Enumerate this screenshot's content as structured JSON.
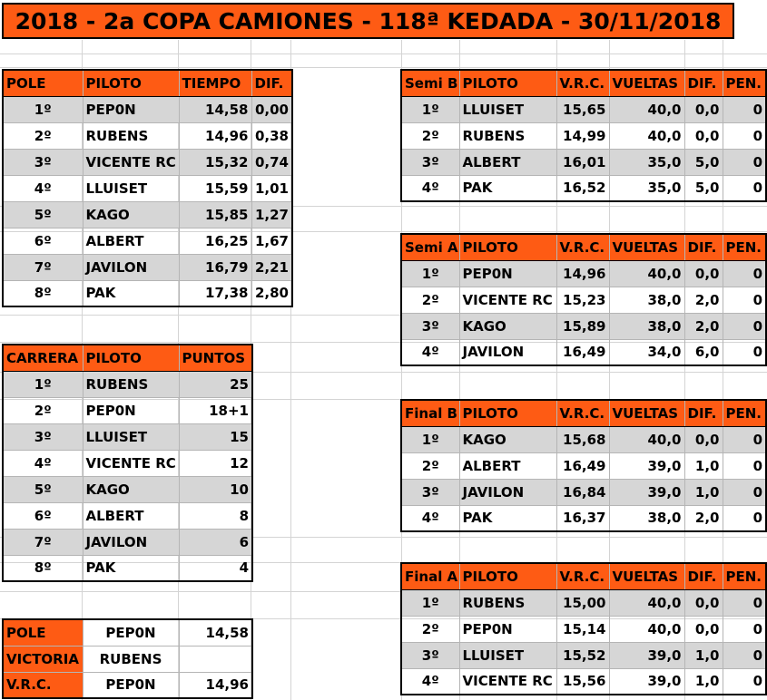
{
  "title": "2018 - 2a COPA CAMIONES - 118ª KEDADA - 30/11/2018",
  "pole": {
    "headers": [
      "POLE",
      "PILOTO",
      "TIEMPO",
      "DIF."
    ],
    "rows": [
      [
        "1º",
        "PEP0N",
        "14,58",
        "0,00"
      ],
      [
        "2º",
        "RUBENS",
        "14,96",
        "0,38"
      ],
      [
        "3º",
        "VICENTE RC",
        "15,32",
        "0,74"
      ],
      [
        "4º",
        "LLUISET",
        "15,59",
        "1,01"
      ],
      [
        "5º",
        "KAGO",
        "15,85",
        "1,27"
      ],
      [
        "6º",
        "ALBERT",
        "16,25",
        "1,67"
      ],
      [
        "7º",
        "JAVILON",
        "16,79",
        "2,21"
      ],
      [
        "8º",
        "PAK",
        "17,38",
        "2,80"
      ]
    ]
  },
  "carrera": {
    "headers": [
      "CARRERA",
      "PILOTO",
      "PUNTOS"
    ],
    "rows": [
      [
        "1º",
        "RUBENS",
        "25"
      ],
      [
        "2º",
        "PEP0N",
        "18+1"
      ],
      [
        "3º",
        "LLUISET",
        "15"
      ],
      [
        "4º",
        "VICENTE RC",
        "12"
      ],
      [
        "5º",
        "KAGO",
        "10"
      ],
      [
        "6º",
        "ALBERT",
        "8"
      ],
      [
        "7º",
        "JAVILON",
        "6"
      ],
      [
        "8º",
        "PAK",
        "4"
      ]
    ]
  },
  "summary": {
    "rows": [
      [
        "POLE",
        "PEP0N",
        "14,58"
      ],
      [
        "VICTORIA",
        "RUBENS",
        ""
      ],
      [
        "V.R.C.",
        "PEP0N",
        "14,96"
      ]
    ]
  },
  "semi_b": {
    "headers": [
      "Semi B",
      "PILOTO",
      "V.R.C.",
      "VUELTAS",
      "DIF.",
      "PEN."
    ],
    "rows": [
      [
        "1º",
        "LLUISET",
        "15,65",
        "40,0",
        "0,0",
        "0"
      ],
      [
        "2º",
        "RUBENS",
        "14,99",
        "40,0",
        "0,0",
        "0"
      ],
      [
        "3º",
        "ALBERT",
        "16,01",
        "35,0",
        "5,0",
        "0"
      ],
      [
        "4º",
        "PAK",
        "16,52",
        "35,0",
        "5,0",
        "0"
      ]
    ]
  },
  "semi_a": {
    "headers": [
      "Semi A",
      "PILOTO",
      "V.R.C.",
      "VUELTAS",
      "DIF.",
      "PEN."
    ],
    "rows": [
      [
        "1º",
        "PEP0N",
        "14,96",
        "40,0",
        "0,0",
        "0"
      ],
      [
        "2º",
        "VICENTE RC",
        "15,23",
        "38,0",
        "2,0",
        "0"
      ],
      [
        "3º",
        "KAGO",
        "15,89",
        "38,0",
        "2,0",
        "0"
      ],
      [
        "4º",
        "JAVILON",
        "16,49",
        "34,0",
        "6,0",
        "0"
      ]
    ]
  },
  "final_b": {
    "headers": [
      "Final B",
      "PILOTO",
      "V.R.C.",
      "VUELTAS",
      "DIF.",
      "PEN."
    ],
    "rows": [
      [
        "1º",
        "KAGO",
        "15,68",
        "40,0",
        "0,0",
        "0"
      ],
      [
        "2º",
        "ALBERT",
        "16,49",
        "39,0",
        "1,0",
        "0"
      ],
      [
        "3º",
        "JAVILON",
        "16,84",
        "39,0",
        "1,0",
        "0"
      ],
      [
        "4º",
        "PAK",
        "16,37",
        "38,0",
        "2,0",
        "0"
      ]
    ]
  },
  "final_a": {
    "headers": [
      "Final A",
      "PILOTO",
      "V.R.C.",
      "VUELTAS",
      "DIF.",
      "PEN."
    ],
    "rows": [
      [
        "1º",
        "RUBENS",
        "15,00",
        "40,0",
        "0,0",
        "0"
      ],
      [
        "2º",
        "PEP0N",
        "15,14",
        "40,0",
        "0,0",
        "0"
      ],
      [
        "3º",
        "LLUISET",
        "15,52",
        "39,0",
        "1,0",
        "0"
      ],
      [
        "4º",
        "VICENTE RC",
        "15,56",
        "39,0",
        "1,0",
        "0"
      ]
    ]
  }
}
